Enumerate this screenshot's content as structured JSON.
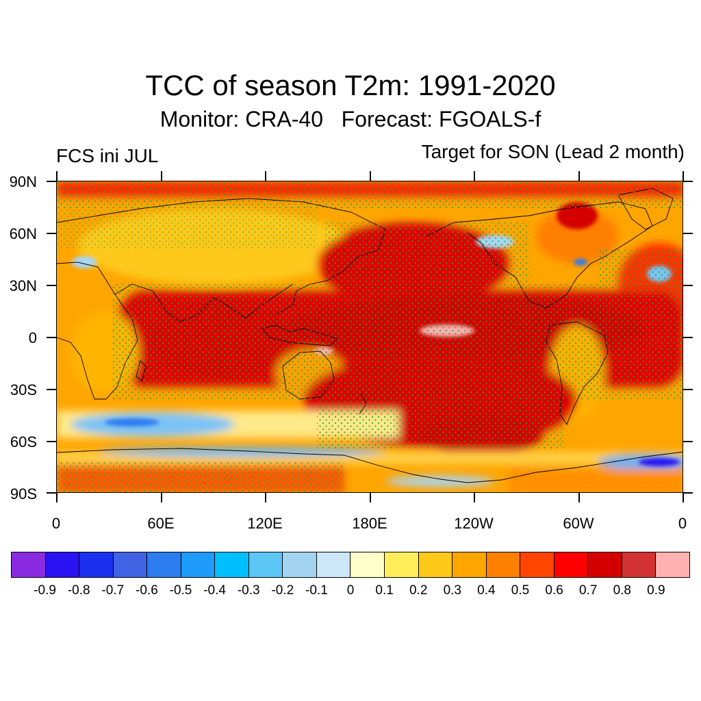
{
  "title": "TCC of season T2m: 1991-2020",
  "subtitle": "Monitor: CRA-40   Forecast: FGOALS-f",
  "left_label": "FCS ini JUL",
  "right_label": "Target for SON (Lead 2 month)",
  "map": {
    "projection": "cylindrical equidistant",
    "lon_range": [
      0,
      360
    ],
    "lat_range": [
      -90,
      90
    ],
    "lat_ticks": [
      "90N",
      "60N",
      "30N",
      "0",
      "30S",
      "60S",
      "90S"
    ],
    "lon_ticks": [
      "0",
      "60E",
      "120E",
      "180E",
      "120W",
      "60W",
      "0"
    ],
    "stippling": "green dots mark significant correlation",
    "stipple_color": "#22a83a",
    "dominant_pattern": "high positive correlation (0.6-0.9) over tropical Pacific, Indian Ocean and Atlantic; negative values over Southern Ocean near 60S and West Antarctica"
  },
  "colorbar": {
    "colors": [
      "#8a2be2",
      "#2b12f2",
      "#1a32f0",
      "#4063e3",
      "#2d7cf0",
      "#1e9bfa",
      "#00bfff",
      "#5cc6f5",
      "#a2d4f2",
      "#cce7f7",
      "#ffffcc",
      "#ffee5a",
      "#ffc91a",
      "#ffa500",
      "#ff7f00",
      "#ff4500",
      "#ff0000",
      "#d40000",
      "#d43333",
      "#ffb0b0"
    ],
    "labels": [
      "-0.9",
      "-0.8",
      "-0.7",
      "-0.6",
      "-0.5",
      "-0.4",
      "-0.3",
      "-0.2",
      "-0.1",
      "0",
      "0.1",
      "0.2",
      "0.3",
      "0.4",
      "0.5",
      "0.6",
      "0.7",
      "0.8",
      "0.9"
    ]
  }
}
